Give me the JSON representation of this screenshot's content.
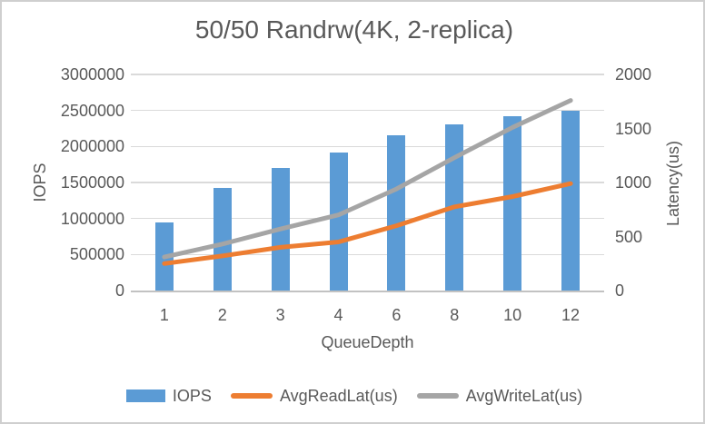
{
  "chart_data": {
    "type": "bar+line combo",
    "title": "50/50 Randrw(4K, 2-replica)",
    "categories": [
      "1",
      "2",
      "3",
      "4",
      "6",
      "8",
      "10",
      "12"
    ],
    "xlabel": "QueueDepth",
    "ylabel_left": "IOPS",
    "ylabel_right": "Latency(us)",
    "ylim_left": [
      0,
      3000000
    ],
    "ylim_right": [
      0,
      2000
    ],
    "yticks_left": [
      "0",
      "500000",
      "1000000",
      "1500000",
      "2000000",
      "2500000",
      "3000000"
    ],
    "yticks_right": [
      "0",
      "500",
      "1000",
      "1500",
      "2000"
    ],
    "grid": true,
    "legend_position": "bottom",
    "series": [
      {
        "name": "IOPS",
        "type": "bar",
        "axis": "left",
        "color": "#5B9BD5",
        "values": [
          940000,
          1430000,
          1700000,
          1910000,
          2160000,
          2310000,
          2420000,
          2490000
        ]
      },
      {
        "name": "AvgReadLat(us)",
        "type": "line",
        "axis": "right",
        "color": "#ED7D31",
        "values": [
          250,
          320,
          400,
          450,
          600,
          775,
          870,
          990
        ]
      },
      {
        "name": "AvgWriteLat(us)",
        "type": "line",
        "axis": "right",
        "color": "#A5A5A5",
        "values": [
          310,
          430,
          570,
          700,
          940,
          1230,
          1510,
          1760
        ]
      }
    ]
  },
  "colors": {
    "bar_blue": "#5B9BD5",
    "line_orange": "#ED7D31",
    "line_gray": "#A5A5A5",
    "text_gray": "#595959",
    "gridline": "#DADADA",
    "axis_line": "#C2C2C2",
    "background": "#FFFFFF",
    "border": "#CFCFCF"
  }
}
